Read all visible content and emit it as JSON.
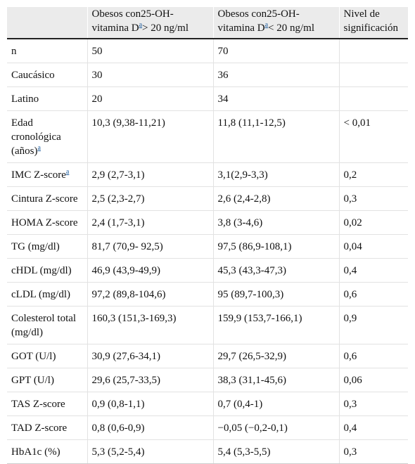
{
  "headers": {
    "col1": "",
    "col2_prefix": "Obesos con25-OH-vitamina D",
    "col2_sup": "a",
    "col2_suffix": "> 20 ng/ml",
    "col3_prefix": "Obesos con25-OH-vitamina D",
    "col3_sup": "a",
    "col3_suffix": "< 20 ng/ml",
    "col4": "Nivel de significación"
  },
  "rows": [
    {
      "label": "n",
      "sup": "",
      "c2": "50",
      "c3": "70",
      "c4": ""
    },
    {
      "label": "Caucásico",
      "sup": "",
      "c2": "30",
      "c3": "36",
      "c4": ""
    },
    {
      "label": "Latino",
      "sup": "",
      "c2": "20",
      "c3": "34",
      "c4": ""
    },
    {
      "label": "Edad cronológica (años)",
      "sup": "a",
      "c2": "10,3 (9,38-11,21)",
      "c3": "11,8 (11,1-12,5)",
      "c4": "< 0,01"
    },
    {
      "label": "IMC Z-score",
      "sup": "a",
      "c2": "2,9 (2,7-3,1)",
      "c3": "3,1(2,9-3,3)",
      "c4": "0,2"
    },
    {
      "label": "Cintura Z-score",
      "sup": "",
      "c2": "2,5 (2,3-2,7)",
      "c3": "2,6 (2,4-2,8)",
      "c4": "0,3"
    },
    {
      "label": "HOMA Z-score",
      "sup": "",
      "c2": "2,4 (1,7-3,1)",
      "c3": "3,8 (3-4,6)",
      "c4": "0,02"
    },
    {
      "label": "TG (mg/dl)",
      "sup": "",
      "c2": "81,7 (70,9- 92,5)",
      "c3": "97,5 (86,9-108,1)",
      "c4": "0,04"
    },
    {
      "label": "cHDL (mg/dl)",
      "sup": "",
      "c2": "46,9 (43,9-49,9)",
      "c3": "45,3 (43,3-47,3)",
      "c4": "0,4"
    },
    {
      "label": "cLDL (mg/dl)",
      "sup": "",
      "c2": "97,2 (89,8-104,6)",
      "c3": "95 (89,7-100,3)",
      "c4": "0,6"
    },
    {
      "label": "Colesterol total (mg/dl)",
      "sup": "",
      "c2": "160,3 (151,3-169,3)",
      "c3": "159,9 (153,7-166,1)",
      "c4": "0,9"
    },
    {
      "label": "GOT (U/l)",
      "sup": "",
      "c2": "30,9 (27,6-34,1)",
      "c3": "29,7 (26,5-32,9)",
      "c4": "0,6"
    },
    {
      "label": "GPT (U/l)",
      "sup": "",
      "c2": "29,6 (25,7-33,5)",
      "c3": "38,3 (31,1-45,6)",
      "c4": "0,06"
    },
    {
      "label": "TAS Z-score",
      "sup": "",
      "c2": "0,9 (0,8-1,1)",
      "c3": "0,7 (0,4-1)",
      "c4": "0,3"
    },
    {
      "label": "TAD Z-score",
      "sup": "",
      "c2": "0,8 (0,6-0,9)",
      "c3": "−0,05 (−0,2-0,1)",
      "c4": "0,4"
    },
    {
      "label": "HbA1c (%)",
      "sup": "",
      "c2": "5,3 (5,2-5,4)",
      "c3": "5,4 (5,3-5,5)",
      "c4": "0,3"
    }
  ]
}
